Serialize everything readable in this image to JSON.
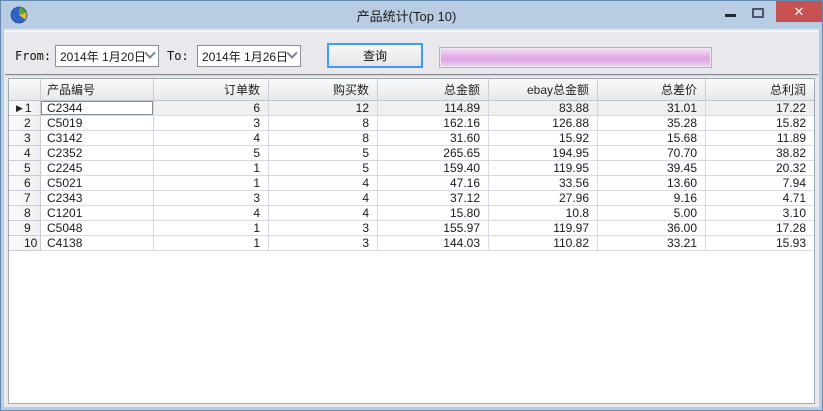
{
  "window": {
    "title": "产品统计(Top 10)",
    "icon": "pie-chart-icon",
    "controls": {
      "close_glyph": "✕"
    }
  },
  "toolbar": {
    "from_label": "From:",
    "from_value": "2014年 1月20日",
    "to_label": "To:",
    "to_value": "2014年 1月26日",
    "query_button": "查询",
    "progress_percent": 100
  },
  "table": {
    "columns": [
      "产品编号",
      "订单数",
      "购买数",
      "总金额",
      "ebay总金额",
      "总差价",
      "总利润"
    ],
    "current_row_marker": "▶",
    "rows": [
      {
        "num": "1",
        "product": "C2344",
        "orders": "6",
        "purchases": "12",
        "total": "114.89",
        "ebay_total": "83.88",
        "diff": "31.01",
        "profit": "17.22",
        "selected": true
      },
      {
        "num": "2",
        "product": "C5019",
        "orders": "3",
        "purchases": "8",
        "total": "162.16",
        "ebay_total": "126.88",
        "diff": "35.28",
        "profit": "15.82",
        "selected": false
      },
      {
        "num": "3",
        "product": "C3142",
        "orders": "4",
        "purchases": "8",
        "total": "31.60",
        "ebay_total": "15.92",
        "diff": "15.68",
        "profit": "11.89",
        "selected": false
      },
      {
        "num": "4",
        "product": "C2352",
        "orders": "5",
        "purchases": "5",
        "total": "265.65",
        "ebay_total": "194.95",
        "diff": "70.70",
        "profit": "38.82",
        "selected": false
      },
      {
        "num": "5",
        "product": "C2245",
        "orders": "1",
        "purchases": "5",
        "total": "159.40",
        "ebay_total": "119.95",
        "diff": "39.45",
        "profit": "20.32",
        "selected": false
      },
      {
        "num": "6",
        "product": "C5021",
        "orders": "1",
        "purchases": "4",
        "total": "47.16",
        "ebay_total": "33.56",
        "diff": "13.60",
        "profit": "7.94",
        "selected": false
      },
      {
        "num": "7",
        "product": "C2343",
        "orders": "3",
        "purchases": "4",
        "total": "37.12",
        "ebay_total": "27.96",
        "diff": "9.16",
        "profit": "4.71",
        "selected": false
      },
      {
        "num": "8",
        "product": "C1201",
        "orders": "4",
        "purchases": "4",
        "total": "15.80",
        "ebay_total": "10.8",
        "diff": "5.00",
        "profit": "3.10",
        "selected": false
      },
      {
        "num": "9",
        "product": "C5048",
        "orders": "1",
        "purchases": "3",
        "total": "155.97",
        "ebay_total": "119.97",
        "diff": "36.00",
        "profit": "17.28",
        "selected": false
      },
      {
        "num": "10",
        "product": "C4138",
        "orders": "1",
        "purchases": "3",
        "total": "144.03",
        "ebay_total": "110.82",
        "diff": "33.21",
        "profit": "15.93",
        "selected": false
      }
    ]
  },
  "colors": {
    "titlebar": "#b8cce4",
    "window_border": "#6389ae",
    "close_button": "#c75050",
    "panel_bg": "#e9e9ed",
    "progress_fill": "#dfa8e6",
    "button_focus_border": "#3d9bfd",
    "gridline": "#d6dae2",
    "selected_row_bg": "#f0f0f0"
  }
}
